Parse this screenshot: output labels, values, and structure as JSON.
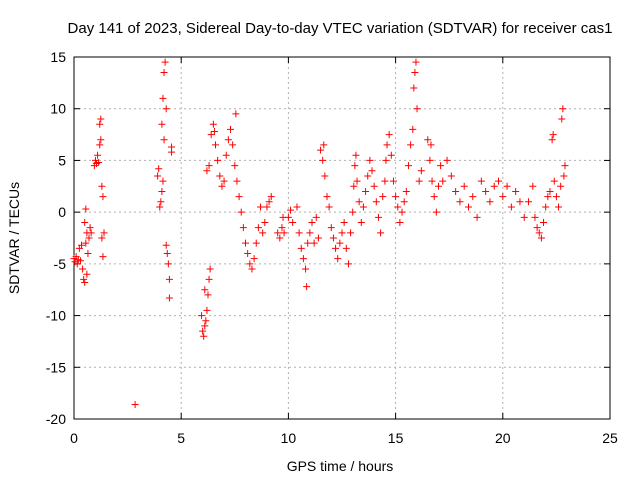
{
  "chart_data": {
    "type": "scatter",
    "title": "Day 141 of 2023, Sidereal Day-to-day VTEC variation (SDTVAR) for receiver cas1",
    "xlabel": "GPS time / hours",
    "ylabel": "SDTVAR / TECUs",
    "xlim": [
      0,
      25
    ],
    "ylim": [
      -20,
      15
    ],
    "x_ticks": [
      0,
      5,
      10,
      15,
      20,
      25
    ],
    "y_ticks": [
      -20,
      -15,
      -10,
      -5,
      0,
      5,
      10,
      15
    ],
    "grid": true,
    "marker": "+",
    "color": "#ff0000",
    "series": [
      {
        "name": "SDTVAR",
        "points": [
          [
            0.0,
            -4.5
          ],
          [
            0.05,
            -4.8
          ],
          [
            0.1,
            -4.3
          ],
          [
            0.15,
            -5.0
          ],
          [
            0.2,
            -4.6
          ],
          [
            0.25,
            -3.5
          ],
          [
            0.3,
            -4.7
          ],
          [
            0.35,
            -3.2
          ],
          [
            0.4,
            -5.5
          ],
          [
            0.45,
            -6.5
          ],
          [
            0.5,
            -6.8
          ],
          [
            0.5,
            -1.0
          ],
          [
            0.55,
            -3.0
          ],
          [
            0.55,
            0.3
          ],
          [
            0.6,
            -6.0
          ],
          [
            0.6,
            -2.0
          ],
          [
            0.65,
            -4.0
          ],
          [
            0.7,
            -2.5
          ],
          [
            0.75,
            -1.5
          ],
          [
            0.8,
            -2.0
          ],
          [
            0.95,
            4.5
          ],
          [
            1.0,
            5.0
          ],
          [
            1.05,
            4.7
          ],
          [
            1.1,
            5.5
          ],
          [
            1.15,
            4.8
          ],
          [
            1.2,
            6.5
          ],
          [
            1.2,
            8.5
          ],
          [
            1.25,
            7.0
          ],
          [
            1.25,
            9.0
          ],
          [
            1.3,
            2.5
          ],
          [
            1.3,
            -2.5
          ],
          [
            1.35,
            -4.3
          ],
          [
            1.35,
            1.5
          ],
          [
            1.4,
            -2.0
          ],
          [
            2.85,
            -18.6
          ],
          [
            3.9,
            3.5
          ],
          [
            3.95,
            4.2
          ],
          [
            4.0,
            0.5
          ],
          [
            4.05,
            1.0
          ],
          [
            4.1,
            2.0
          ],
          [
            4.1,
            8.5
          ],
          [
            4.15,
            3.0
          ],
          [
            4.15,
            11.0
          ],
          [
            4.2,
            7.0
          ],
          [
            4.2,
            13.5
          ],
          [
            4.25,
            14.5
          ],
          [
            4.3,
            10.0
          ],
          [
            4.3,
            -3.2
          ],
          [
            4.35,
            -4.0
          ],
          [
            4.4,
            -5.0
          ],
          [
            4.45,
            -6.5
          ],
          [
            4.45,
            -8.3
          ],
          [
            4.55,
            5.8
          ],
          [
            4.55,
            6.3
          ],
          [
            5.95,
            -10.0
          ],
          [
            6.0,
            -11.5
          ],
          [
            6.05,
            -12.0
          ],
          [
            6.1,
            -11.0
          ],
          [
            6.15,
            -10.5
          ],
          [
            6.2,
            -9.5
          ],
          [
            6.25,
            -8.0
          ],
          [
            6.3,
            -6.5
          ],
          [
            6.35,
            -5.5
          ],
          [
            6.1,
            -7.5
          ],
          [
            6.2,
            4.0
          ],
          [
            6.3,
            4.5
          ],
          [
            6.4,
            7.5
          ],
          [
            6.5,
            8.5
          ],
          [
            6.55,
            7.8
          ],
          [
            6.6,
            6.5
          ],
          [
            6.7,
            5.0
          ],
          [
            6.8,
            3.5
          ],
          [
            6.9,
            2.5
          ],
          [
            7.0,
            3.0
          ],
          [
            7.1,
            5.5
          ],
          [
            7.2,
            7.0
          ],
          [
            7.3,
            8.0
          ],
          [
            7.4,
            6.5
          ],
          [
            7.5,
            4.5
          ],
          [
            7.55,
            9.5
          ],
          [
            7.6,
            3.0
          ],
          [
            7.7,
            1.5
          ],
          [
            7.8,
            0.0
          ],
          [
            7.9,
            -1.5
          ],
          [
            8.0,
            -3.0
          ],
          [
            8.1,
            -4.0
          ],
          [
            8.2,
            -5.0
          ],
          [
            8.3,
            -5.5
          ],
          [
            8.4,
            -4.5
          ],
          [
            8.5,
            -3.0
          ],
          [
            8.6,
            -1.5
          ],
          [
            8.7,
            0.5
          ],
          [
            8.8,
            -2.0
          ],
          [
            8.9,
            -1.0
          ],
          [
            9.0,
            0.5
          ],
          [
            9.1,
            1.0
          ],
          [
            9.2,
            1.5
          ],
          [
            9.5,
            -2.0
          ],
          [
            9.6,
            -2.5
          ],
          [
            9.7,
            -1.5
          ],
          [
            9.75,
            -0.5
          ],
          [
            9.8,
            -2.0
          ],
          [
            10.0,
            -0.5
          ],
          [
            10.1,
            0.2
          ],
          [
            10.2,
            -1.0
          ],
          [
            10.4,
            0.5
          ],
          [
            10.5,
            -2.0
          ],
          [
            10.6,
            -3.5
          ],
          [
            10.7,
            -4.5
          ],
          [
            10.8,
            -5.5
          ],
          [
            10.85,
            -7.2
          ],
          [
            10.9,
            -3.0
          ],
          [
            11.0,
            -2.0
          ],
          [
            11.1,
            -1.0
          ],
          [
            11.2,
            -3.0
          ],
          [
            11.3,
            -0.5
          ],
          [
            11.4,
            -2.5
          ],
          [
            11.5,
            6.0
          ],
          [
            11.6,
            5.0
          ],
          [
            11.65,
            6.5
          ],
          [
            11.7,
            3.5
          ],
          [
            11.8,
            1.5
          ],
          [
            11.9,
            0.5
          ],
          [
            12.0,
            -1.5
          ],
          [
            12.1,
            -2.5
          ],
          [
            12.2,
            -3.5
          ],
          [
            12.3,
            -4.5
          ],
          [
            12.4,
            -3.0
          ],
          [
            12.5,
            -2.0
          ],
          [
            12.6,
            -1.0
          ],
          [
            12.7,
            -3.5
          ],
          [
            12.8,
            -5.0
          ],
          [
            12.9,
            -2.0
          ],
          [
            13.0,
            0.0
          ],
          [
            13.05,
            2.5
          ],
          [
            13.1,
            4.5
          ],
          [
            13.15,
            5.5
          ],
          [
            13.2,
            3.0
          ],
          [
            13.3,
            1.0
          ],
          [
            13.4,
            -1.0
          ],
          [
            13.5,
            0.5
          ],
          [
            13.6,
            2.0
          ],
          [
            13.7,
            3.5
          ],
          [
            13.8,
            5.0
          ],
          [
            13.9,
            4.0
          ],
          [
            14.0,
            2.5
          ],
          [
            14.1,
            1.0
          ],
          [
            14.2,
            -0.5
          ],
          [
            14.3,
            -2.0
          ],
          [
            14.4,
            1.5
          ],
          [
            14.5,
            3.0
          ],
          [
            14.55,
            5.0
          ],
          [
            14.6,
            6.5
          ],
          [
            14.7,
            7.5
          ],
          [
            14.8,
            5.5
          ],
          [
            14.9,
            3.0
          ],
          [
            15.0,
            1.5
          ],
          [
            15.1,
            0.5
          ],
          [
            15.2,
            -1.0
          ],
          [
            15.3,
            0.0
          ],
          [
            15.4,
            1.0
          ],
          [
            15.5,
            2.0
          ],
          [
            15.6,
            4.5
          ],
          [
            15.7,
            6.5
          ],
          [
            15.8,
            8.0
          ],
          [
            15.85,
            12.0
          ],
          [
            15.9,
            13.5
          ],
          [
            15.95,
            14.5
          ],
          [
            16.0,
            10.0
          ],
          [
            16.1,
            3.0
          ],
          [
            16.2,
            4.0
          ],
          [
            16.5,
            7.0
          ],
          [
            16.6,
            5.0
          ],
          [
            16.65,
            6.5
          ],
          [
            16.7,
            3.0
          ],
          [
            16.8,
            1.5
          ],
          [
            16.9,
            0.0
          ],
          [
            17.0,
            2.5
          ],
          [
            17.1,
            4.5
          ],
          [
            17.2,
            3.0
          ],
          [
            17.4,
            5.0
          ],
          [
            17.6,
            3.5
          ],
          [
            17.8,
            2.0
          ],
          [
            18.0,
            1.0
          ],
          [
            18.2,
            2.5
          ],
          [
            18.4,
            0.5
          ],
          [
            18.6,
            1.5
          ],
          [
            18.8,
            -0.5
          ],
          [
            19.0,
            3.0
          ],
          [
            19.2,
            2.0
          ],
          [
            19.4,
            1.0
          ],
          [
            19.6,
            2.5
          ],
          [
            19.8,
            3.0
          ],
          [
            20.0,
            1.5
          ],
          [
            20.2,
            2.5
          ],
          [
            20.4,
            0.5
          ],
          [
            20.6,
            2.0
          ],
          [
            20.8,
            1.0
          ],
          [
            21.0,
            -0.5
          ],
          [
            21.2,
            1.0
          ],
          [
            21.4,
            2.5
          ],
          [
            21.5,
            -0.5
          ],
          [
            21.6,
            -1.5
          ],
          [
            21.7,
            -2.0
          ],
          [
            21.8,
            -2.5
          ],
          [
            21.9,
            -1.0
          ],
          [
            22.0,
            0.5
          ],
          [
            22.1,
            1.5
          ],
          [
            22.2,
            2.0
          ],
          [
            22.3,
            7.0
          ],
          [
            22.35,
            7.5
          ],
          [
            22.4,
            3.0
          ],
          [
            22.5,
            1.5
          ],
          [
            22.6,
            0.5
          ],
          [
            22.7,
            2.5
          ],
          [
            22.75,
            9.0
          ],
          [
            22.8,
            10.0
          ],
          [
            22.85,
            3.5
          ],
          [
            22.9,
            4.5
          ]
        ]
      }
    ]
  }
}
